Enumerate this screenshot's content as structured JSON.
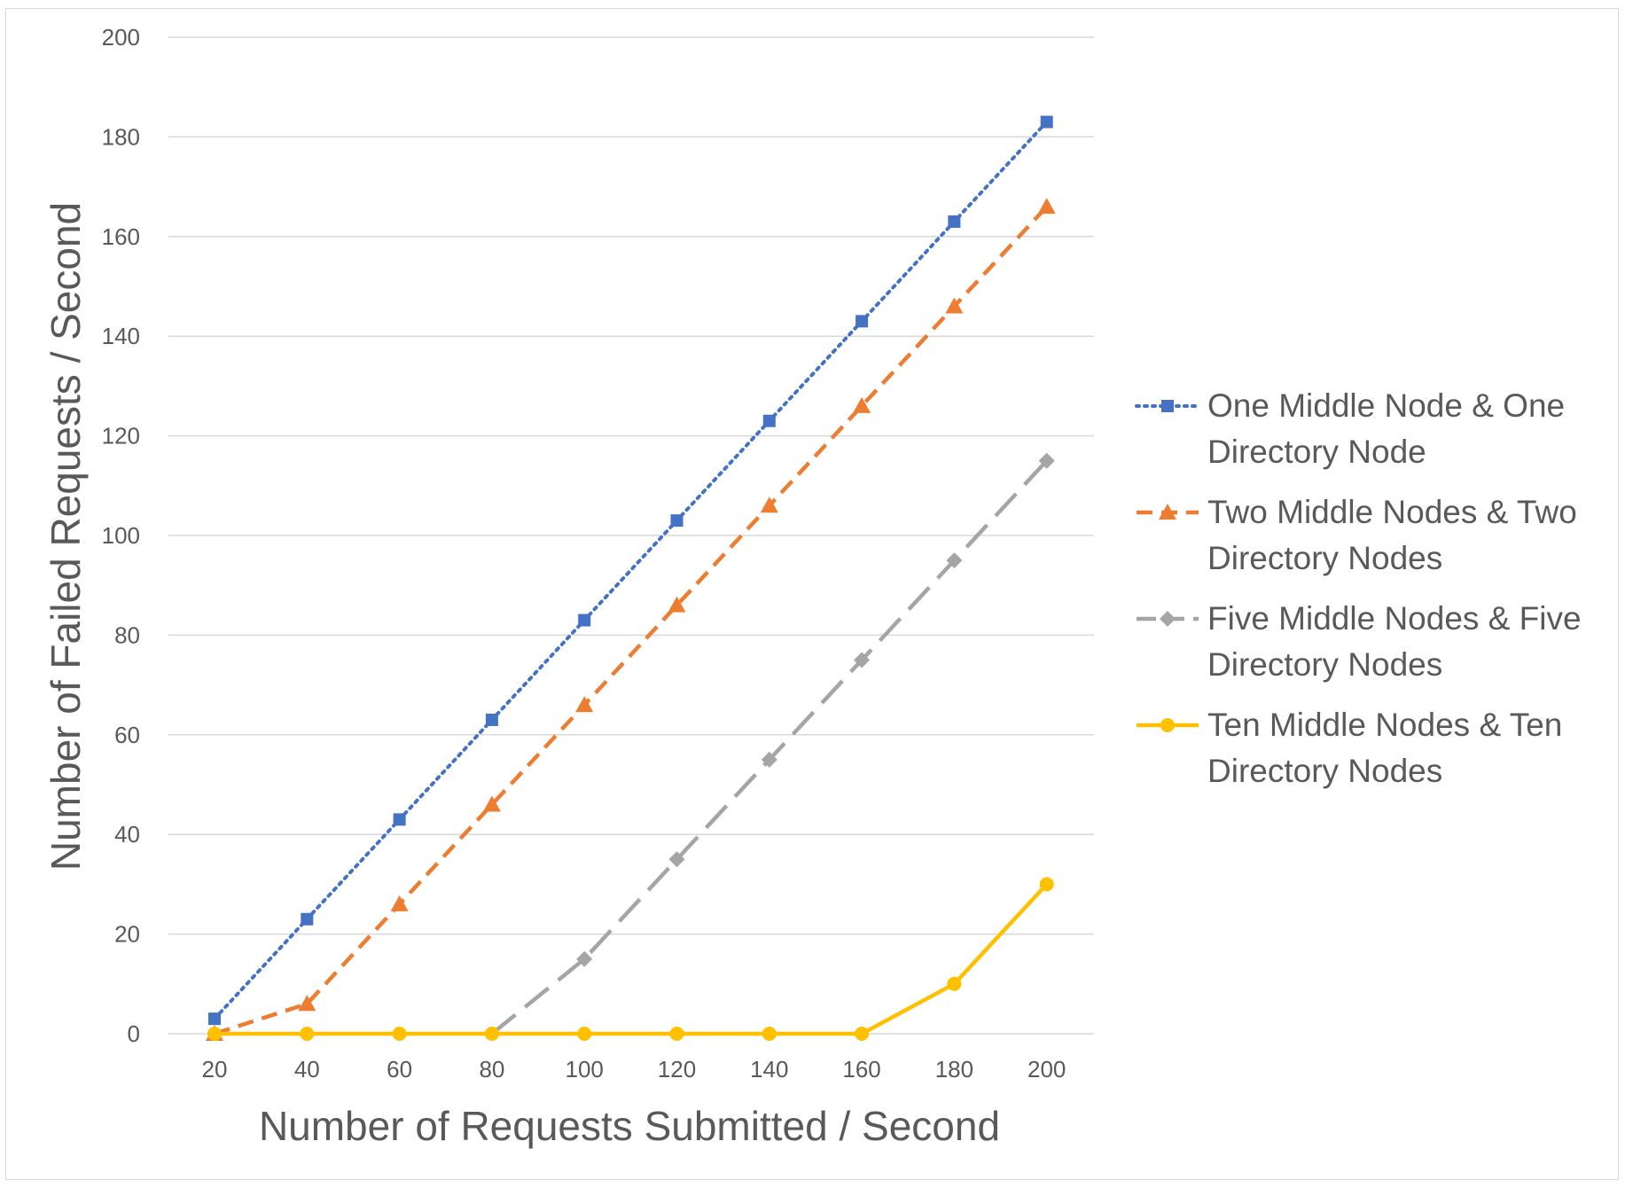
{
  "chart_data": {
    "type": "line",
    "xlabel": "Number of Requests Submitted / Second",
    "ylabel": "Number of Failed Requests / Second",
    "x": [
      20,
      40,
      60,
      80,
      100,
      120,
      140,
      160,
      180,
      200
    ],
    "ylim": [
      0,
      200
    ],
    "yticks": [
      0,
      20,
      40,
      60,
      80,
      100,
      120,
      140,
      160,
      180,
      200
    ],
    "grid": "horizontal",
    "legend_position": "right",
    "series": [
      {
        "name_lines": [
          "One Middle Node & One",
          "Directory Node"
        ],
        "values": [
          3,
          23,
          43,
          63,
          83,
          103,
          123,
          143,
          163,
          183
        ],
        "color": "#4472C4",
        "dash": "dotted",
        "marker": "square"
      },
      {
        "name_lines": [
          "Two Middle Nodes & Two",
          "Directory Nodes"
        ],
        "values": [
          0,
          6,
          26,
          46,
          66,
          86,
          106,
          126,
          146,
          166
        ],
        "color": "#ED7D31",
        "dash": "dashed",
        "marker": "triangle"
      },
      {
        "name_lines": [
          "Five Middle Nodes & Five",
          "Directory Nodes"
        ],
        "values": [
          null,
          null,
          null,
          0,
          15,
          35,
          55,
          75,
          95,
          115
        ],
        "color": "#A5A5A5",
        "dash": "long-dash",
        "marker": "diamond"
      },
      {
        "name_lines": [
          "Ten Middle Nodes & Ten",
          "Directory Nodes"
        ],
        "values": [
          0,
          0,
          0,
          0,
          0,
          0,
          0,
          0,
          10,
          30
        ],
        "color": "#FFC000",
        "dash": "solid",
        "marker": "circle"
      }
    ]
  }
}
